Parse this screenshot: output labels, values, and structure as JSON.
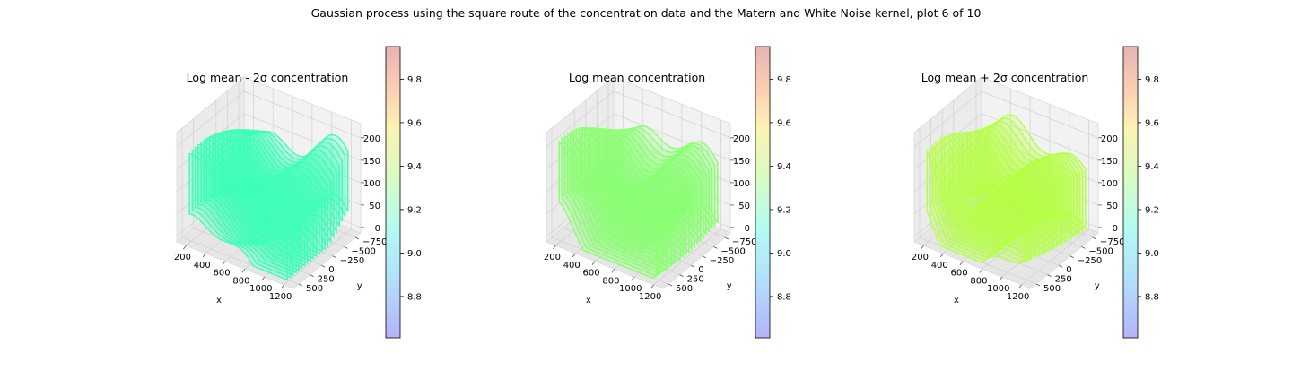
{
  "suptitle": "Gaussian process using the square route of the concentration data and the Matern and White Noise kernel, plot 6 of 10",
  "colormap": "rainbow",
  "colors": {
    "lower": "#3dffb8",
    "mean": "#8aff72",
    "upper": "#b6ff48",
    "pane": "#f2f2f2",
    "grid": "#d9d9d9"
  },
  "chart_data": [
    {
      "type": "scatter3d",
      "title": "Log mean - 2σ concentration",
      "xlabel": "x",
      "ylabel": "y",
      "zlabel": "",
      "x_ticks": [
        "200",
        "400",
        "600",
        "800",
        "1000",
        "1200"
      ],
      "y_ticks": [
        "−750",
        "−500",
        "−250",
        "0",
        "250",
        "500"
      ],
      "z_ticks": [
        "0",
        "50",
        "100",
        "150",
        "200"
      ],
      "xlim": [
        100,
        1300
      ],
      "ylim": [
        -900,
        700
      ],
      "zlim": [
        0,
        210
      ],
      "series_value": 9.18,
      "colorbar": {
        "ticks": [
          "8.8",
          "9.0",
          "9.2",
          "9.4",
          "9.6",
          "9.8"
        ],
        "range": [
          8.61,
          9.95
        ]
      }
    },
    {
      "type": "scatter3d",
      "title": "Log mean concentration",
      "xlabel": "x",
      "ylabel": "y",
      "zlabel": "",
      "x_ticks": [
        "200",
        "400",
        "600",
        "800",
        "1000",
        "1200"
      ],
      "y_ticks": [
        "−750",
        "−500",
        "−250",
        "0",
        "250",
        "500"
      ],
      "z_ticks": [
        "0",
        "50",
        "100",
        "150",
        "200"
      ],
      "xlim": [
        100,
        1300
      ],
      "ylim": [
        -900,
        700
      ],
      "zlim": [
        0,
        210
      ],
      "series_value": 9.3,
      "colorbar": {
        "ticks": [
          "8.8",
          "9.0",
          "9.2",
          "9.4",
          "9.6",
          "9.8"
        ],
        "range": [
          8.61,
          9.95
        ]
      }
    },
    {
      "type": "scatter3d",
      "title": "Log mean + 2σ concentration",
      "xlabel": "x",
      "ylabel": "y",
      "zlabel": "",
      "x_ticks": [
        "200",
        "400",
        "600",
        "800",
        "1000",
        "1200"
      ],
      "y_ticks": [
        "−750",
        "−500",
        "−250",
        "0",
        "250",
        "500"
      ],
      "z_ticks": [
        "0",
        "50",
        "100",
        "150",
        "200"
      ],
      "xlim": [
        100,
        1300
      ],
      "ylim": [
        -900,
        700
      ],
      "zlim": [
        0,
        210
      ],
      "series_value": 9.38,
      "colorbar": {
        "ticks": [
          "8.8",
          "9.0",
          "9.2",
          "9.4",
          "9.6",
          "9.8"
        ],
        "range": [
          8.61,
          9.95
        ]
      }
    }
  ]
}
